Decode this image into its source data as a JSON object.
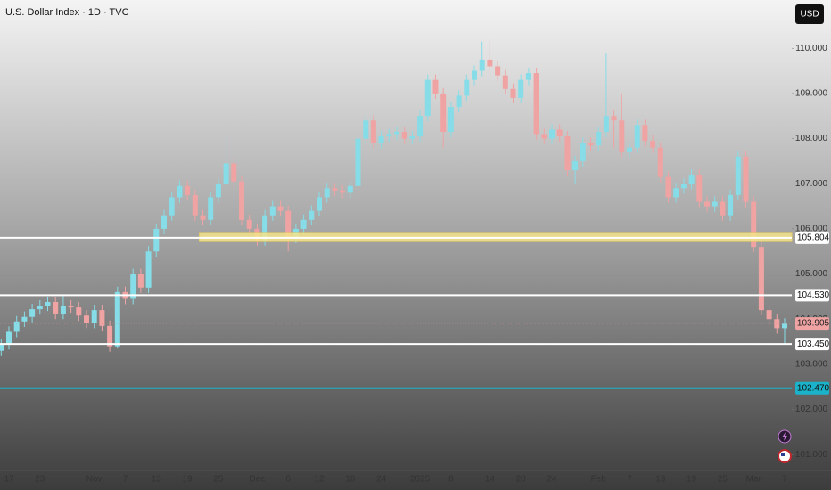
{
  "chart_data": {
    "type": "candlestick",
    "title": "U.S. Dollar Index · 1D · TVC",
    "currency": "USD",
    "up_color": "#86dde8",
    "down_color": "#f0a3a3",
    "categories": [
      null,
      "17",
      null,
      null,
      null,
      "23",
      null,
      null,
      null,
      null,
      null,
      null,
      "Nov",
      null,
      null,
      null,
      "7",
      null,
      null,
      null,
      "13",
      null,
      null,
      null,
      "19",
      null,
      null,
      null,
      "25",
      null,
      null,
      null,
      null,
      "Dec",
      null,
      null,
      null,
      "6",
      null,
      null,
      null,
      "12",
      null,
      null,
      null,
      "18",
      null,
      null,
      null,
      "24",
      null,
      null,
      null,
      null,
      "2025",
      null,
      null,
      null,
      "8",
      null,
      null,
      null,
      null,
      "14",
      null,
      null,
      null,
      "20",
      null,
      null,
      null,
      "24",
      null,
      null,
      null,
      null,
      null,
      "Feb",
      null,
      null,
      null,
      "7",
      null,
      null,
      null,
      "13",
      null,
      null,
      null,
      "19",
      null,
      null,
      null,
      "25",
      null,
      null,
      null,
      "Mar",
      null,
      null,
      null,
      "7"
    ],
    "open": [
      103.3,
      103.45,
      103.72,
      103.95,
      104.05,
      104.22,
      104.3,
      104.38,
      104.12,
      104.3,
      104.26,
      104.08,
      103.92,
      104.2,
      103.85,
      103.4,
      104.6,
      104.45,
      105.0,
      104.7,
      105.5,
      106.0,
      106.3,
      106.7,
      106.95,
      106.75,
      106.3,
      106.2,
      106.7,
      107.0,
      107.45,
      107.05,
      106.2,
      106.0,
      105.75,
      106.3,
      106.5,
      106.4,
      105.8,
      106.0,
      106.2,
      106.4,
      106.7,
      106.9,
      106.85,
      106.8,
      106.95,
      108.0,
      108.4,
      107.9,
      108.05,
      108.1,
      108.15,
      108.0,
      108.05,
      108.5,
      109.3,
      109.0,
      108.15,
      108.7,
      108.95,
      109.3,
      109.5,
      109.75,
      109.6,
      109.4,
      109.1,
      108.9,
      109.3,
      109.45,
      108.1,
      108.0,
      108.2,
      108.05,
      107.3,
      107.5,
      107.9,
      107.85,
      108.15,
      108.5,
      108.4,
      107.7,
      107.8,
      108.3,
      107.95,
      107.8,
      107.15,
      106.7,
      106.9,
      107.0,
      107.2,
      106.6,
      106.5,
      106.6,
      106.3,
      106.75,
      107.6,
      106.6,
      105.6,
      104.2,
      104.0,
      103.8
    ],
    "high": [
      103.57,
      103.84,
      104.07,
      104.17,
      104.34,
      104.42,
      104.5,
      104.5,
      104.55,
      104.42,
      104.38,
      104.2,
      104.32,
      104.32,
      103.97,
      104.72,
      104.72,
      105.12,
      105.12,
      105.62,
      106.12,
      106.42,
      106.82,
      107.07,
      107.07,
      106.87,
      106.42,
      106.82,
      107.12,
      108.1,
      107.57,
      107.17,
      106.32,
      106.12,
      106.42,
      106.62,
      106.62,
      106.52,
      106.12,
      106.32,
      106.52,
      106.82,
      107.02,
      107.02,
      106.97,
      107.07,
      108.12,
      108.52,
      108.52,
      108.17,
      108.22,
      108.27,
      108.27,
      108.17,
      108.62,
      109.42,
      109.42,
      109.12,
      108.82,
      109.07,
      109.42,
      109.62,
      110.15,
      110.2,
      109.72,
      109.52,
      109.22,
      109.42,
      109.57,
      109.57,
      108.22,
      108.32,
      108.32,
      108.17,
      107.62,
      108.02,
      108.02,
      108.27,
      109.9,
      108.62,
      109.0,
      107.92,
      108.42,
      108.42,
      108.07,
      107.92,
      107.27,
      107.02,
      107.12,
      107.32,
      107.32,
      106.72,
      106.72,
      106.72,
      106.87,
      107.72,
      107.72,
      106.72,
      105.72,
      104.32,
      104.12,
      104.02
    ],
    "low": [
      103.18,
      103.33,
      103.6,
      103.83,
      103.93,
      104.1,
      104.18,
      104.0,
      104.0,
      104.14,
      103.96,
      103.8,
      103.8,
      103.73,
      103.28,
      103.35,
      104.33,
      104.33,
      104.58,
      104.58,
      105.38,
      105.88,
      106.18,
      106.58,
      106.63,
      106.18,
      106.08,
      106.08,
      106.58,
      106.88,
      106.93,
      106.08,
      105.88,
      105.63,
      105.63,
      106.18,
      106.28,
      105.5,
      105.68,
      105.88,
      106.08,
      106.28,
      106.58,
      106.73,
      106.68,
      106.68,
      106.83,
      107.88,
      107.78,
      107.78,
      107.93,
      107.98,
      107.88,
      107.88,
      107.93,
      108.38,
      108.88,
      107.8,
      108.03,
      108.58,
      108.83,
      109.18,
      109.38,
      109.48,
      109.28,
      108.98,
      108.78,
      108.78,
      109.18,
      107.98,
      107.88,
      107.88,
      107.93,
      107.18,
      107.0,
      107.38,
      107.73,
      107.73,
      108.03,
      107.8,
      107.58,
      107.58,
      107.68,
      107.83,
      107.68,
      107.03,
      106.58,
      106.58,
      106.78,
      106.88,
      106.48,
      106.38,
      106.38,
      106.18,
      106.18,
      106.63,
      106.48,
      105.48,
      104.08,
      103.88,
      103.68,
      103.45
    ],
    "close": [
      103.45,
      103.72,
      103.95,
      104.05,
      104.22,
      104.3,
      104.38,
      104.12,
      104.3,
      104.26,
      104.08,
      103.92,
      104.2,
      103.85,
      103.4,
      104.6,
      104.45,
      105.0,
      104.7,
      105.5,
      106.0,
      106.3,
      106.7,
      106.95,
      106.75,
      106.3,
      106.2,
      106.7,
      107.0,
      107.45,
      107.05,
      106.2,
      106.0,
      105.75,
      106.3,
      106.5,
      106.4,
      105.8,
      106.0,
      106.2,
      106.4,
      106.7,
      106.9,
      106.85,
      106.8,
      106.95,
      108.0,
      108.4,
      107.9,
      108.05,
      108.1,
      108.15,
      108.0,
      108.05,
      108.5,
      109.3,
      109.0,
      108.15,
      108.7,
      108.95,
      109.3,
      109.5,
      109.75,
      109.6,
      109.4,
      109.1,
      108.9,
      109.3,
      109.45,
      108.1,
      108.0,
      108.2,
      108.05,
      107.3,
      107.5,
      107.9,
      107.85,
      108.15,
      108.5,
      108.4,
      107.7,
      107.8,
      108.3,
      107.95,
      107.8,
      107.15,
      106.7,
      106.9,
      107.0,
      107.2,
      106.6,
      106.5,
      106.6,
      106.3,
      106.75,
      107.6,
      106.6,
      105.6,
      104.2,
      104.0,
      103.8,
      103.9
    ],
    "ylim": [
      100.65,
      111.07
    ],
    "yticks": [
      {
        "value": 101,
        "label": "101.000"
      },
      {
        "value": 102,
        "label": "102.000"
      },
      {
        "value": 103,
        "label": "103.000"
      },
      {
        "value": 104,
        "label": "104.000"
      },
      {
        "value": 105,
        "label": "105.000"
      },
      {
        "value": 106,
        "label": "106.000"
      },
      {
        "value": 107,
        "label": "107.000"
      },
      {
        "value": 108,
        "label": "108.000"
      },
      {
        "value": 109,
        "label": "109.000"
      },
      {
        "value": 110,
        "label": "110.000"
      }
    ],
    "zone": {
      "from": 105.72,
      "to": 105.92,
      "start": 29,
      "color": "#f3e38a"
    },
    "levels": [
      {
        "value": 105.804,
        "label": "105.804",
        "color": "#ffffff"
      },
      {
        "value": 104.53,
        "label": "104.530",
        "color": "#ffffff"
      },
      {
        "value": 103.45,
        "label": "103.450",
        "color": "#ffffff"
      },
      {
        "value": 102.47,
        "label": "102.470",
        "color": "#1ab3c9"
      }
    ],
    "last_price": {
      "value": 103.905,
      "label": "103.905",
      "color": "#f0a3a3"
    }
  }
}
